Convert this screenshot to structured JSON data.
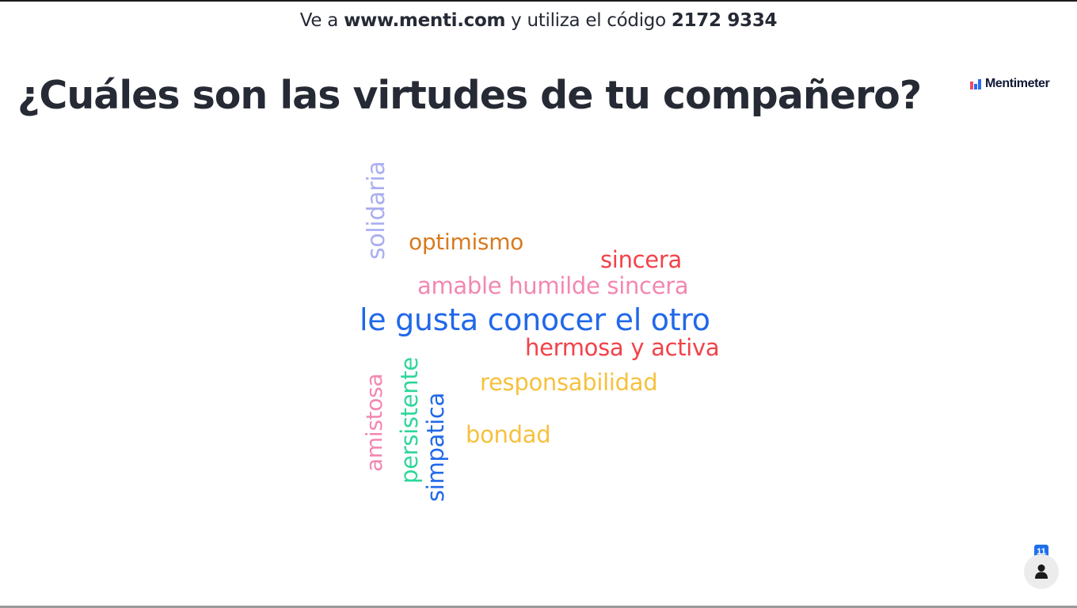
{
  "header": {
    "join_prefix": "Ve a ",
    "join_url": "www.menti.com",
    "join_middle": " y utiliza el código ",
    "join_code": "2172 9334"
  },
  "slide": {
    "title": "¿Cuáles son las virtudes de tu compañero?"
  },
  "brand": {
    "name": "Mentimeter",
    "logo_icon": "mentimeter-logo-icon"
  },
  "word_cloud": {
    "words": [
      {
        "text": "solidaria",
        "color": "#a9aef0",
        "orientation": "vertical"
      },
      {
        "text": "optimismo",
        "color": "#d97a1e",
        "orientation": "horizontal"
      },
      {
        "text": "sincera",
        "color": "#f2424a",
        "orientation": "horizontal"
      },
      {
        "text": "amable humilde sincera",
        "color": "#f387b0",
        "orientation": "horizontal"
      },
      {
        "text": "le gusta conocer el otro",
        "color": "#2168ea",
        "orientation": "horizontal"
      },
      {
        "text": "hermosa y activa",
        "color": "#f2424a",
        "orientation": "horizontal"
      },
      {
        "text": "amistosa",
        "color": "#f387b0",
        "orientation": "vertical"
      },
      {
        "text": "persistente",
        "color": "#2fd69a",
        "orientation": "vertical"
      },
      {
        "text": "simpatica",
        "color": "#2168ea",
        "orientation": "vertical"
      },
      {
        "text": "responsabilidad",
        "color": "#f6c13d",
        "orientation": "horizontal"
      },
      {
        "text": "bondad",
        "color": "#f6c13d",
        "orientation": "horizontal"
      }
    ]
  },
  "participants": {
    "count": "11",
    "icon": "person-icon"
  },
  "colors": {
    "text_dark": "#262a35",
    "accent_blue": "#2168ea"
  }
}
